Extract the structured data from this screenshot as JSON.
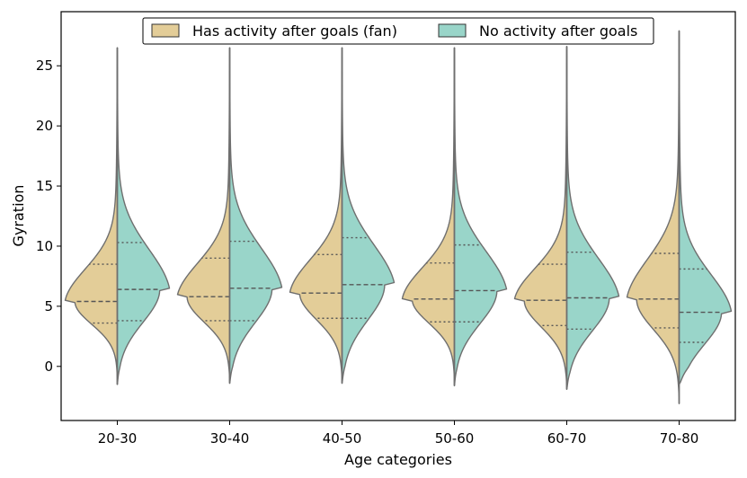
{
  "chart_data": {
    "type": "violin",
    "split": true,
    "title": "",
    "xlabel": "Age categories",
    "ylabel": "Gyration",
    "ylim": [
      -4.5,
      29.5
    ],
    "yticks": [
      0,
      5,
      10,
      15,
      20,
      25
    ],
    "categories": [
      "20-30",
      "30-40",
      "40-50",
      "50-60",
      "60-70",
      "70-80"
    ],
    "legend_position": "top-center",
    "series": [
      {
        "name": "Has activity after goals (fan)",
        "color": "#e3cd98",
        "side": "left",
        "quartiles": [
          [
            3.6,
            5.4,
            8.5
          ],
          [
            3.8,
            5.8,
            9.0
          ],
          [
            4.0,
            6.1,
            9.3
          ],
          [
            3.7,
            5.6,
            8.6
          ],
          [
            3.4,
            5.5,
            8.5
          ],
          [
            3.2,
            5.6,
            9.4
          ]
        ],
        "range": [
          [
            -1.5,
            26.5
          ],
          [
            -1.4,
            26.5
          ],
          [
            -1.4,
            26.5
          ],
          [
            -1.6,
            26.5
          ],
          [
            -1.9,
            26.6
          ],
          [
            -3.1,
            27.9
          ]
        ]
      },
      {
        "name": "No activity after goals",
        "color": "#99d5c9",
        "side": "right",
        "quartiles": [
          [
            3.8,
            6.4,
            10.3
          ],
          [
            3.8,
            6.5,
            10.4
          ],
          [
            4.0,
            6.8,
            10.7
          ],
          [
            3.7,
            6.3,
            10.1
          ],
          [
            3.1,
            5.7,
            9.5
          ],
          [
            2.0,
            4.5,
            8.1
          ]
        ],
        "range": [
          [
            -1.5,
            26.5
          ],
          [
            -1.4,
            26.5
          ],
          [
            -1.4,
            26.5
          ],
          [
            -1.6,
            26.5
          ],
          [
            -1.9,
            26.6
          ],
          [
            -1.5,
            27.9
          ]
        ]
      }
    ]
  }
}
